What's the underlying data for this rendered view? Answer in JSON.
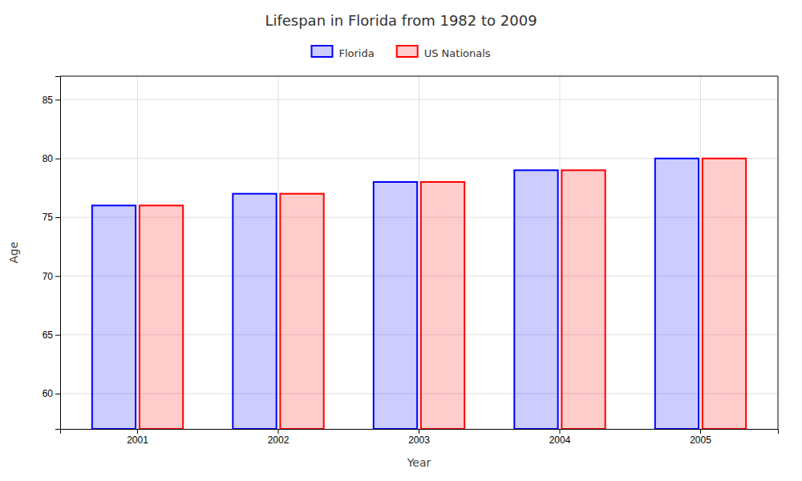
{
  "chart_data": {
    "type": "bar",
    "title": "Lifespan in Florida from 1982 to 2009",
    "xlabel": "Year",
    "ylabel": "Age",
    "categories": [
      "2001",
      "2002",
      "2003",
      "2004",
      "2005"
    ],
    "series": [
      {
        "name": "Florida",
        "color": "#0000ff",
        "values": [
          76,
          77,
          78,
          79,
          80
        ]
      },
      {
        "name": "US Nationals",
        "color": "#ff0000",
        "values": [
          76,
          77,
          78,
          79,
          80
        ]
      }
    ],
    "ylim": [
      57,
      87
    ],
    "yticks": [
      60,
      65,
      70,
      75,
      80,
      85
    ],
    "grid": true,
    "legend": "top"
  }
}
